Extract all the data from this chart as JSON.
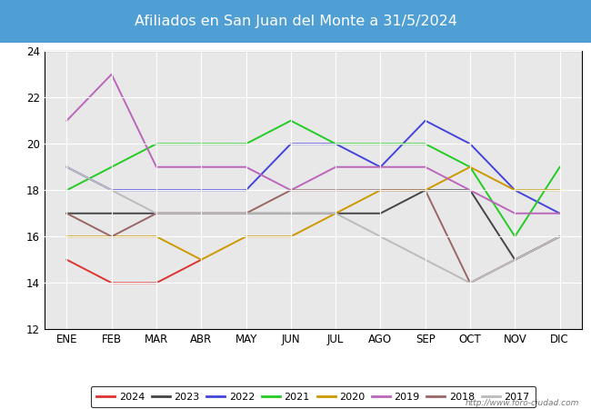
{
  "title": "Afiliados en San Juan del Monte a 31/5/2024",
  "title_bg_color": "#4f9fd4",
  "title_text_color": "white",
  "ylim": [
    12,
    24
  ],
  "yticks": [
    12,
    14,
    16,
    18,
    20,
    22,
    24
  ],
  "months": [
    "ENE",
    "FEB",
    "MAR",
    "ABR",
    "MAY",
    "JUN",
    "JUL",
    "AGO",
    "SEP",
    "OCT",
    "NOV",
    "DIC"
  ],
  "watermark": "http://www.foro-ciudad.com",
  "plot_bg": "#e8e8e8",
  "grid_color": "#ffffff",
  "series": [
    {
      "year": "2024",
      "color": "#dd3333",
      "data": [
        15,
        14,
        14,
        15,
        null,
        null,
        null,
        null,
        null,
        null,
        null,
        null
      ]
    },
    {
      "year": "2023",
      "color": "#444444",
      "data": [
        17,
        17,
        17,
        17,
        17,
        17,
        17,
        17,
        18,
        18,
        15,
        16
      ]
    },
    {
      "year": "2022",
      "color": "#4444dd",
      "data": [
        19,
        18,
        18,
        18,
        18,
        20,
        20,
        19,
        21,
        20,
        18,
        17
      ]
    },
    {
      "year": "2021",
      "color": "#22cc22",
      "data": [
        18,
        19,
        20,
        20,
        20,
        21,
        20,
        20,
        20,
        19,
        16,
        19
      ]
    },
    {
      "year": "2020",
      "color": "#cc9900",
      "data": [
        16,
        16,
        16,
        15,
        16,
        16,
        17,
        18,
        18,
        19,
        18,
        18
      ]
    },
    {
      "year": "2019",
      "color": "#bb66bb",
      "data": [
        21,
        23,
        19,
        19,
        19,
        18,
        19,
        19,
        19,
        18,
        17,
        17
      ]
    },
    {
      "year": "2018",
      "color": "#996666",
      "data": [
        17,
        16,
        17,
        17,
        17,
        18,
        18,
        18,
        18,
        14,
        15,
        16
      ]
    },
    {
      "year": "2017",
      "color": "#bbbbbb",
      "data": [
        19,
        18,
        17,
        17,
        17,
        17,
        17,
        16,
        15,
        14,
        15,
        16
      ]
    }
  ]
}
